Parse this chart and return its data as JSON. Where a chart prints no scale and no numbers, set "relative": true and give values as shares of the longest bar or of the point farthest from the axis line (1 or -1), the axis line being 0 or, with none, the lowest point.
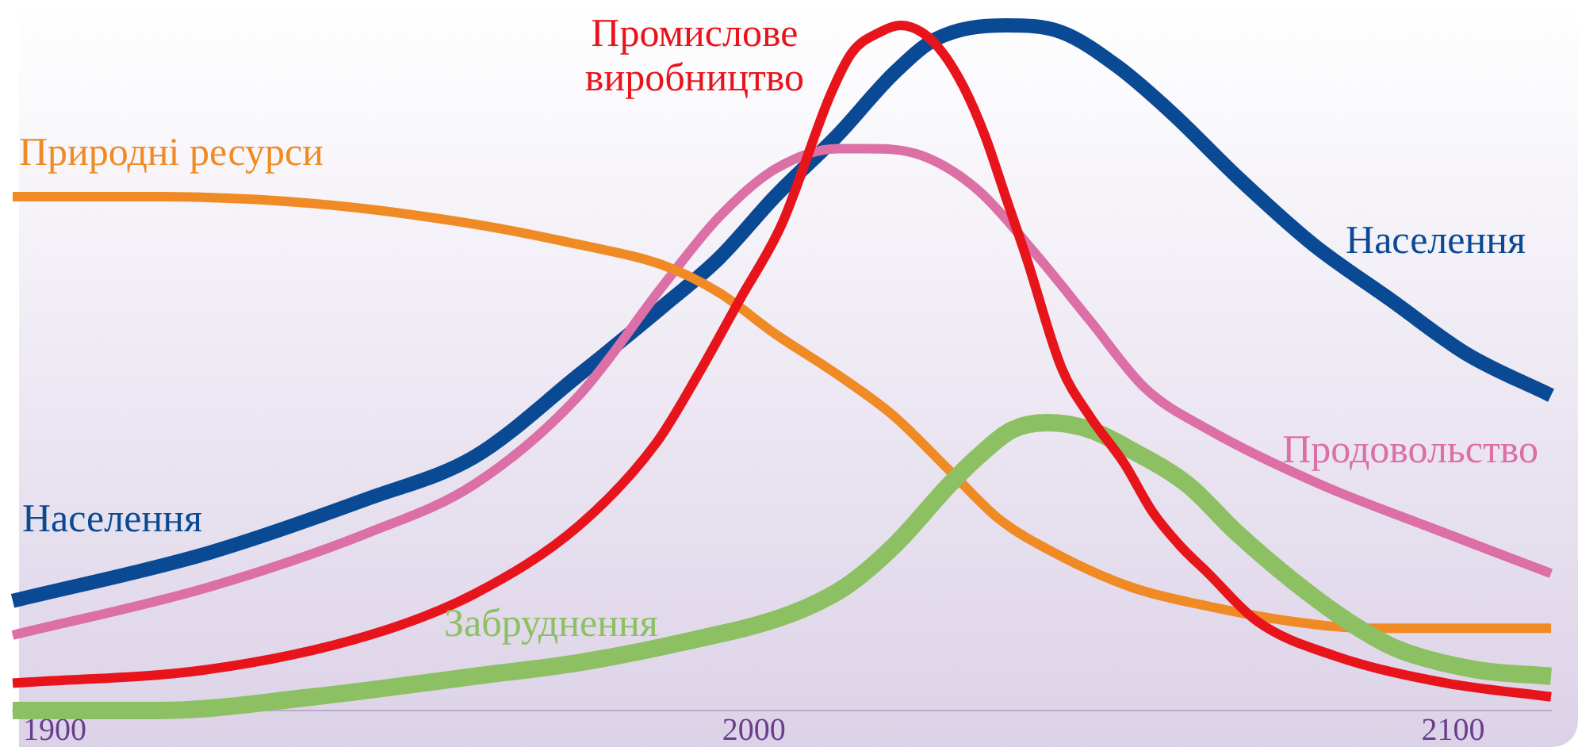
{
  "chart_data": {
    "type": "line",
    "relative": true,
    "xlim": [
      1894,
      2114
    ],
    "xticks": [
      1900,
      2000,
      2100
    ],
    "tick_labels": "x",
    "legend": false,
    "marker": "none",
    "line_style": "solid",
    "series": [
      {
        "name": "Промислове виробництво",
        "color": "#e8141c",
        "x": [
          1894,
          1922,
          1945,
          1960,
          1975,
          1986,
          1992,
          1998,
          2004,
          2011,
          2014,
          2018,
          2021,
          2024,
          2027,
          2030,
          2033,
          2036,
          2039,
          2044,
          2048,
          2053,
          2057,
          2061,
          2065,
          2072,
          2083,
          2099,
          2114
        ],
        "values": [
          0.04,
          0.06,
          0.11,
          0.17,
          0.27,
          0.39,
          0.49,
          0.6,
          0.71,
          0.9,
          0.96,
          0.99,
          1,
          0.99,
          0.96,
          0.91,
          0.84,
          0.75,
          0.66,
          0.5,
          0.43,
          0.36,
          0.29,
          0.24,
          0.2,
          0.13,
          0.08,
          0.04,
          0.02
        ]
      },
      {
        "name": "Забруднення",
        "color": "#8cc063",
        "x": [
          1894,
          1915,
          1937,
          1960,
          1975,
          1990,
          2005,
          2013,
          2020,
          2028,
          2032,
          2037,
          2042,
          2048,
          2054,
          2062,
          2069,
          2077,
          2085,
          2092,
          2103,
          2114
        ],
        "values": [
          0,
          0,
          0.02,
          0.05,
          0.07,
          0.1,
          0.14,
          0.18,
          0.24,
          0.33,
          0.37,
          0.41,
          0.42,
          0.41,
          0.38,
          0.33,
          0.26,
          0.19,
          0.13,
          0.09,
          0.06,
          0.05
        ]
      },
      {
        "name": "Природні ресурси",
        "color": "#f08a24",
        "x": [
          1894,
          1915,
          1937,
          1960,
          1975,
          1987,
          1995,
          2003,
          2012,
          2020,
          2028,
          2035,
          2043,
          2054,
          2066,
          2077,
          2088,
          2114
        ],
        "values": [
          0.75,
          0.75,
          0.74,
          0.71,
          0.68,
          0.65,
          0.61,
          0.55,
          0.49,
          0.43,
          0.35,
          0.28,
          0.23,
          0.18,
          0.15,
          0.13,
          0.12,
          0.12
        ]
      },
      {
        "name": "Продовольство",
        "color": "#dc6fa5",
        "x": [
          1894,
          1922,
          1945,
          1960,
          1975,
          1987,
          1995,
          2003,
          2012,
          2016,
          2024,
          2032,
          2040,
          2048,
          2056,
          2065,
          2081,
          2096,
          2114
        ],
        "values": [
          0.11,
          0.18,
          0.26,
          0.33,
          0.46,
          0.62,
          0.72,
          0.79,
          0.82,
          0.82,
          0.81,
          0.76,
          0.67,
          0.57,
          0.47,
          0.41,
          0.33,
          0.27,
          0.2
        ]
      },
      {
        "name": "Населення",
        "color": "#0a4a94",
        "x": [
          1894,
          1922,
          1945,
          1960,
          1975,
          1987,
          1995,
          2003,
          2012,
          2020,
          2026,
          2036,
          2044,
          2052,
          2060,
          2069,
          2080,
          2091,
          2102,
          2114
        ],
        "values": [
          0.16,
          0.23,
          0.31,
          0.37,
          0.49,
          0.59,
          0.66,
          0.75,
          0.84,
          0.93,
          0.98,
          1,
          0.99,
          0.94,
          0.87,
          0.78,
          0.68,
          0.6,
          0.52,
          0.46
        ]
      }
    ]
  }
}
